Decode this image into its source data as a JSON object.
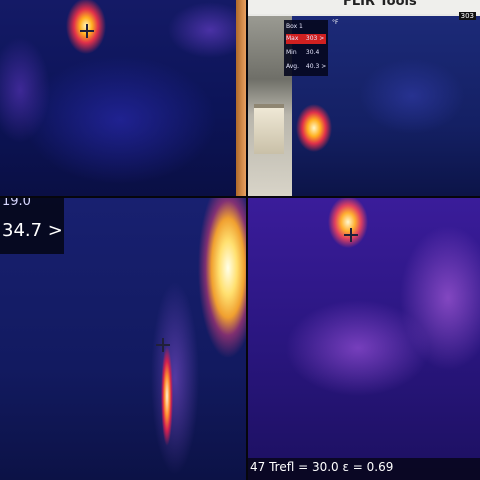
{
  "panel_top_right": {
    "title": "FLIR Tools",
    "unit": "°F",
    "corner_value": "303",
    "box_label": "Box 1",
    "max": {
      "label": "Max",
      "value": "303 >"
    },
    "min": {
      "label": "Min",
      "value": "30.4"
    },
    "avg": {
      "label": "Avg.",
      "value": "40.3 >"
    }
  },
  "panel_bottom_left": {
    "temp_partial": "19.0",
    "temp_main": "34.7 >"
  },
  "panel_bottom_right": {
    "footer_text": "47  Trefl = 30.0  ε = 0.69"
  },
  "colors": {
    "cold": "#141a66",
    "warm": "#e0304a",
    "hot": "#ffb020",
    "readout_bg": "#06081e",
    "max_highlight": "#d02020"
  }
}
